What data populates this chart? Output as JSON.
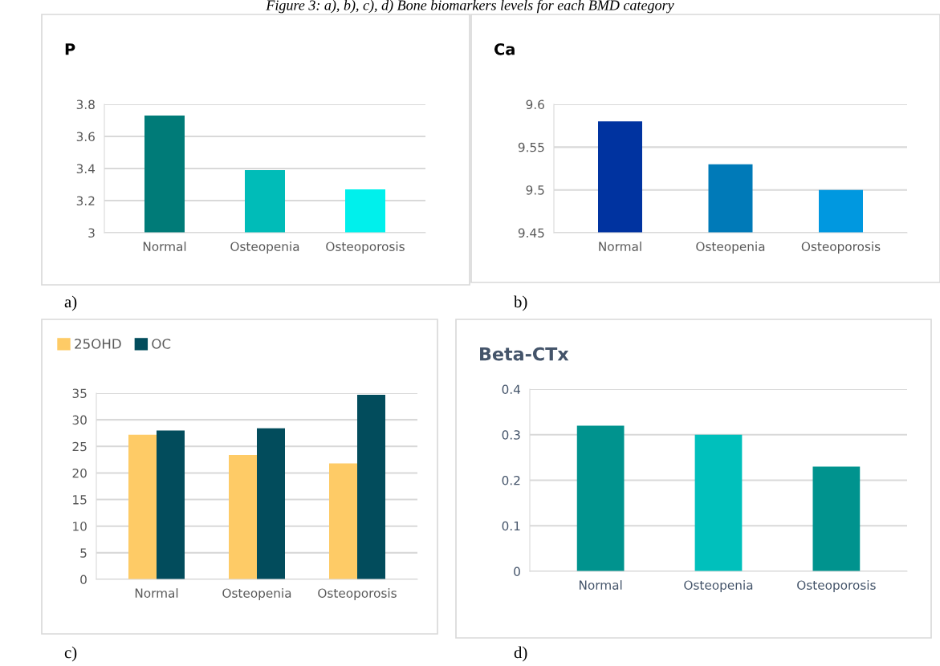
{
  "chart_data": [
    {
      "type": "bar",
      "title": "P",
      "categories": [
        "Normal",
        "Osteopenia",
        "Osteoporosis"
      ],
      "values": [
        3.73,
        3.39,
        3.27
      ],
      "colors": [
        "#007b78",
        "#00bcb8",
        "#00f0ec"
      ],
      "ylim": [
        3,
        3.8
      ],
      "yticks": [
        3,
        3.2,
        3.4,
        3.6,
        3.8
      ],
      "grid": "y",
      "annotations": [
        "Figure 3: a), b), c), d) Bone biomarkers levels for each BMD category",
        "a)"
      ]
    },
    {
      "type": "bar",
      "title": "Ca",
      "categories": [
        "Normal",
        "Osteopenia",
        "Osteoporosis"
      ],
      "values": [
        9.58,
        9.53,
        9.5
      ],
      "colors": [
        "#0033a0",
        "#007ab8",
        "#0098e0"
      ],
      "ylim": [
        9.45,
        9.6
      ],
      "yticks": [
        9.45,
        9.5,
        9.55,
        9.6
      ],
      "grid": "y",
      "annotations": [
        "b)"
      ]
    },
    {
      "type": "bar",
      "categories": [
        "Normal",
        "Osteopenia",
        "Osteoporosis"
      ],
      "series": [
        {
          "name": "25OHD",
          "color": "#fecb66",
          "values": [
            27.2,
            23.4,
            21.8
          ]
        },
        {
          "name": "OC",
          "color": "#024c5c",
          "values": [
            28.0,
            28.4,
            34.7
          ]
        }
      ],
      "ylim": [
        0,
        35
      ],
      "yticks": [
        0,
        5,
        10,
        15,
        20,
        25,
        30,
        35
      ],
      "grid": "y",
      "legend": "top left",
      "annotations": [
        "c)"
      ]
    },
    {
      "type": "bar",
      "title": "Beta-CTx",
      "categories": [
        "Normal",
        "Osteopenia",
        "Osteoporosis"
      ],
      "values": [
        0.32,
        0.3,
        0.23
      ],
      "colors": [
        "#00938e",
        "#00c0bc",
        "#00938e"
      ],
      "ylim": [
        0,
        0.4
      ],
      "yticks": [
        0,
        0.1,
        0.2,
        0.3,
        0.4
      ],
      "grid": "y",
      "annotations": [
        "d)"
      ]
    }
  ]
}
